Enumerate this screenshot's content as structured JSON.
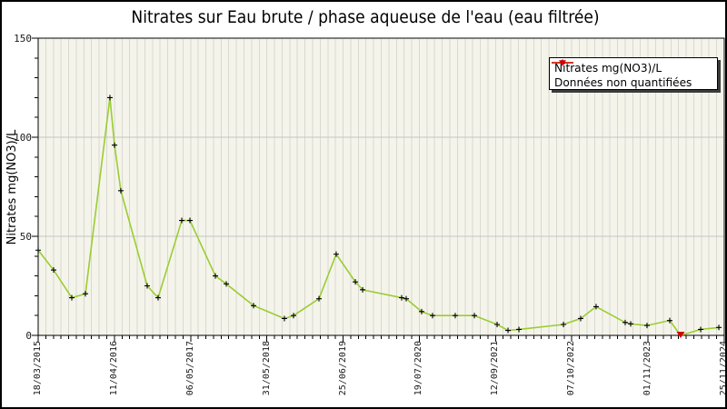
{
  "title": "Nitrates sur Eau brute / phase aqueuse de l'eau (eau filtrée)",
  "colors": {
    "line": "#9ACD32",
    "marker": "#000000",
    "non_quantified": "#D40000",
    "plot_bg": "#F5F4EB",
    "stripe": "#D9D9D1",
    "gridline": "#C4C4C4",
    "frame": "#000000"
  },
  "chart_data": {
    "type": "line",
    "title": "Nitrates sur Eau brute / phase aqueuse de l'eau (eau filtrée)",
    "xlabel": "",
    "ylabel": "Nitrates mg(NO3)/L",
    "ylim": [
      0,
      150
    ],
    "y_major_ticks": [
      "0",
      "50",
      "100",
      "150"
    ],
    "y_major_values": [
      0,
      50,
      100,
      150
    ],
    "y_minor_step": 10,
    "grid": {
      "vertical_stripes": true,
      "h_gridlines": [
        50,
        100
      ]
    },
    "x_tick_labels": [
      "18/03/2015",
      "11/04/2016",
      "06/05/2017",
      "31/05/2018",
      "25/06/2019",
      "19/07/2020",
      "12/09/2021",
      "07/10/2022",
      "01/11/2023",
      "25/11/2024"
    ],
    "x_minor_divisions": 90,
    "x_axis_note": "x given as fraction of axis: 0 = 18/03/2015, 1 = 25/11/2024",
    "legend": {
      "position": "top-right",
      "entries": [
        {
          "label": "Nitrates mg(NO3)/L",
          "marker": "plus",
          "color": "#9ACD32"
        },
        {
          "label": "Données non quantifiées",
          "marker": "triangle-down",
          "color": "#D40000"
        }
      ]
    },
    "series": [
      {
        "name": "Nitrates mg(NO3)/L",
        "line_color": "#9ACD32",
        "marker": "plus",
        "marker_color": "#000000",
        "suppress_marker_at": [
          36
        ],
        "points": [
          [
            0.0,
            43
          ],
          [
            0.0225,
            33
          ],
          [
            0.049,
            19
          ],
          [
            0.0689,
            21
          ],
          [
            0.1046,
            120
          ],
          [
            0.1113,
            96
          ],
          [
            0.1205,
            73
          ],
          [
            0.1589,
            25
          ],
          [
            0.1748,
            19
          ],
          [
            0.2093,
            58
          ],
          [
            0.2212,
            58
          ],
          [
            0.2583,
            30
          ],
          [
            0.2742,
            26
          ],
          [
            0.3139,
            15
          ],
          [
            0.3589,
            8.5
          ],
          [
            0.3722,
            10
          ],
          [
            0.4093,
            18.5
          ],
          [
            0.4344,
            41
          ],
          [
            0.4623,
            27
          ],
          [
            0.4729,
            23
          ],
          [
            0.5298,
            19
          ],
          [
            0.5364,
            18.5
          ],
          [
            0.5589,
            12
          ],
          [
            0.5748,
            10
          ],
          [
            0.6079,
            10
          ],
          [
            0.6358,
            10
          ],
          [
            0.6689,
            5.5
          ],
          [
            0.6848,
            2.5
          ],
          [
            0.7007,
            3
          ],
          [
            0.7656,
            5.5
          ],
          [
            0.7907,
            8.5
          ],
          [
            0.8132,
            14.5
          ],
          [
            0.8556,
            6.5
          ],
          [
            0.8636,
            5.8
          ],
          [
            0.8874,
            5
          ],
          [
            0.9205,
            7.5
          ],
          [
            0.9364,
            0
          ],
          [
            0.9656,
            3
          ],
          [
            0.9921,
            4
          ]
        ]
      },
      {
        "name": "Données non quantifiées",
        "color": "#D40000",
        "marker": "triangle-down",
        "points": [
          [
            0.9364,
            0
          ]
        ]
      }
    ]
  }
}
